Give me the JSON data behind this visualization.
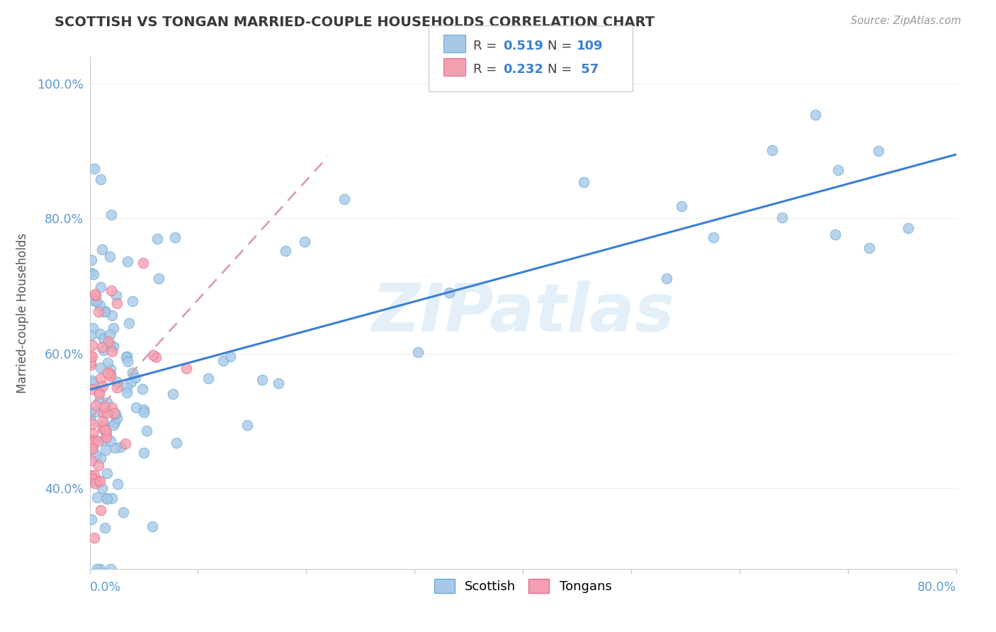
{
  "title": "SCOTTISH VS TONGAN MARRIED-COUPLE HOUSEHOLDS CORRELATION CHART",
  "source": "Source: ZipAtlas.com",
  "ylabel": "Married-couple Households",
  "xlim": [
    0.0,
    0.8
  ],
  "ylim": [
    0.28,
    1.04
  ],
  "yticks": [
    0.4,
    0.6,
    0.8,
    1.0
  ],
  "ytick_labels": [
    "40.0%",
    "60.0%",
    "80.0%",
    "100.0%"
  ],
  "scottish_color": "#a8c8e8",
  "tongan_color": "#f4a0b0",
  "scottish_edge": "#6aacd4",
  "tongan_edge": "#e07090",
  "trend_scottish_color": "#3a7fd5",
  "trend_tongan_color": "#d8a0b0",
  "scottish_label": "Scottish",
  "tongan_label": "Tongans",
  "watermark": "ZIPatlas",
  "title_fontsize": 14,
  "tick_color": "#5b9bd5",
  "axis_color": "#cccccc",
  "grid_color": "#e8e8e8"
}
